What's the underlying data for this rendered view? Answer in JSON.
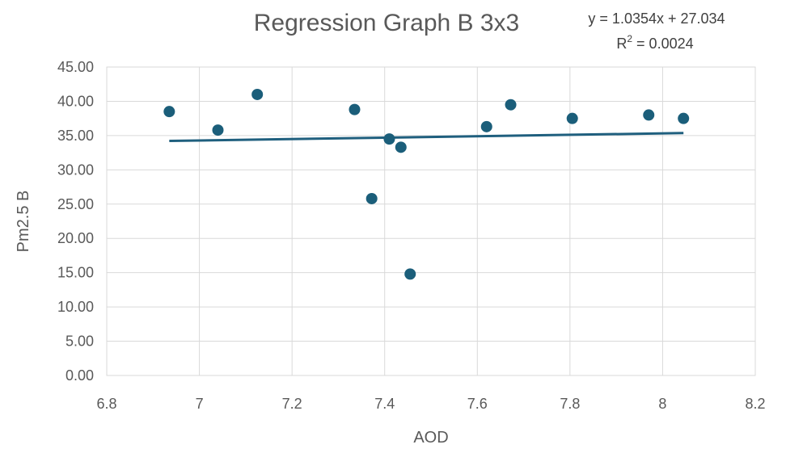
{
  "chart_data": {
    "type": "scatter",
    "title": "Regression Graph B 3x3",
    "xlabel": "AOD",
    "ylabel": "Pm2.5 B",
    "xlim": [
      6.8,
      8.2
    ],
    "ylim": [
      0,
      45
    ],
    "x_ticks": [
      "6.8",
      "7",
      "7.2",
      "7.4",
      "7.6",
      "7.8",
      "8",
      "8.2"
    ],
    "y_ticks": [
      "0.00",
      "5.00",
      "10.00",
      "15.00",
      "20.00",
      "25.00",
      "30.00",
      "35.00",
      "40.00",
      "45.00"
    ],
    "grid": true,
    "legend": "none",
    "marker_color": "#1b5e7a",
    "trendline_color": "#1f5f7e",
    "trendline": {
      "label_line1": "y = 1.0354x + 27.034",
      "label_r2_prefix": "R",
      "label_r2_sup": "2",
      "label_r2_suffix": " = 0.0024",
      "slope": 1.0354,
      "intercept": 27.034,
      "x_range": [
        6.935,
        8.045
      ]
    },
    "points": [
      {
        "x": 6.935,
        "y": 38.5
      },
      {
        "x": 7.04,
        "y": 35.8
      },
      {
        "x": 7.125,
        "y": 41.0
      },
      {
        "x": 7.335,
        "y": 38.8
      },
      {
        "x": 7.372,
        "y": 25.8
      },
      {
        "x": 7.41,
        "y": 34.5
      },
      {
        "x": 7.435,
        "y": 33.3
      },
      {
        "x": 7.455,
        "y": 14.8
      },
      {
        "x": 7.62,
        "y": 36.3
      },
      {
        "x": 7.672,
        "y": 39.5
      },
      {
        "x": 7.805,
        "y": 37.5
      },
      {
        "x": 7.97,
        "y": 38.0
      },
      {
        "x": 8.045,
        "y": 37.5
      }
    ]
  }
}
